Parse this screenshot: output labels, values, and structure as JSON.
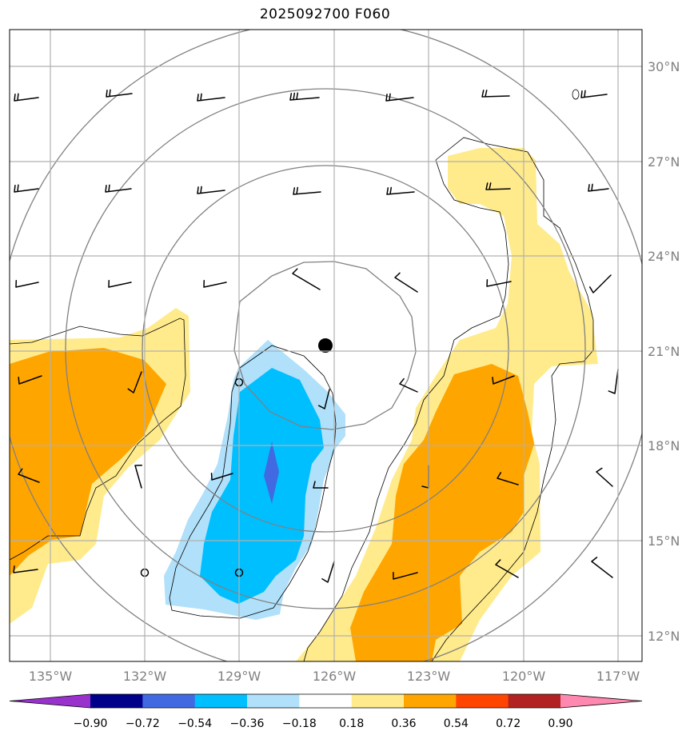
{
  "title": "2025092700 F060",
  "lat_labels": [
    "30°N",
    "27°N",
    "24°N",
    "21°N",
    "18°N",
    "15°N",
    "12°N"
  ],
  "lon_labels": [
    "135°W",
    "132°W",
    "129°W",
    "126°W",
    "123°W",
    "120°W",
    "117°W"
  ],
  "colorbar": {
    "ticks": [
      "−0.90",
      "−0.72",
      "−0.54",
      "−0.36",
      "−0.18",
      "0.18",
      "0.36",
      "0.54",
      "0.72",
      "0.90"
    ],
    "colors": [
      "#9932cc",
      "#00008b",
      "#4169e1",
      "#00bfff",
      "#b0e0fa",
      "#ffffff",
      "#ffeb8c",
      "#ffa500",
      "#ff4500",
      "#b22222",
      "#ff88b0"
    ]
  },
  "colors": {
    "positive_light": "#ffeb8c",
    "positive_mid": "#ffa500",
    "negative_light": "#b0e0fa",
    "negative_mid": "#00bfff",
    "negative_strong": "#4169e1",
    "contour": "#808080",
    "grid": "#b0b0b0"
  },
  "center_marker": "storm-center-dot"
}
